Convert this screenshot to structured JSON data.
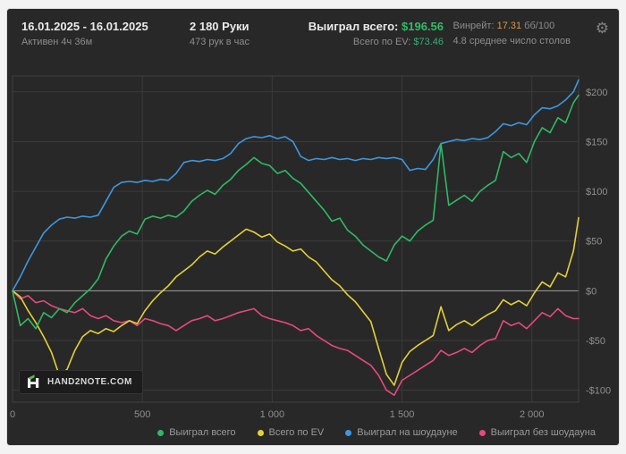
{
  "header": {
    "date_range": "16.01.2025 - 16.01.2025",
    "active_time": "Активен 4ч 36м",
    "hands": "2 180 Руки",
    "hands_per_hour": "473 рук в час",
    "won_label": "Выиграл всего:",
    "won_value": "$196.56",
    "ev_label": "Всего по EV:",
    "ev_value": "$73.46",
    "winrate_label": "Винрейт:",
    "winrate_value": "17.31",
    "winrate_unit": "бб/100",
    "avg_tables": "4.8 среднее число столов",
    "gear_icon": "⚙"
  },
  "colors": {
    "panel_bg": "#282828",
    "won_value": "#2fbd66",
    "ev_value": "#35ae78",
    "winrate_value": "#d89a3f",
    "grid": "#3a3a3a",
    "zero_line": "#9f9f9f",
    "tick_text": "#8f8f8f"
  },
  "logo": {
    "text": "HAND2NOTE.COM"
  },
  "chart_data": {
    "type": "line",
    "title": "",
    "xlabel": "",
    "ylabel": "",
    "grid": true,
    "legend_position": "bottom",
    "xlim": [
      0,
      2180
    ],
    "ylim": [
      -112,
      216
    ],
    "xticks": [
      {
        "v": 0,
        "label": "0"
      },
      {
        "v": 500,
        "label": "500"
      },
      {
        "v": 1000,
        "label": "1 000"
      },
      {
        "v": 1500,
        "label": "1 500"
      },
      {
        "v": 2000,
        "label": "2 000"
      }
    ],
    "yticks": [
      {
        "v": 200,
        "label": "$200"
      },
      {
        "v": 150,
        "label": "$150"
      },
      {
        "v": 100,
        "label": "$100"
      },
      {
        "v": 50,
        "label": "$50"
      },
      {
        "v": 0,
        "label": "$0"
      },
      {
        "v": -50,
        "label": "-$50"
      },
      {
        "v": -100,
        "label": "-$100"
      }
    ],
    "x": [
      0,
      30,
      60,
      90,
      120,
      150,
      180,
      210,
      240,
      270,
      300,
      330,
      360,
      390,
      420,
      450,
      480,
      510,
      540,
      570,
      600,
      630,
      660,
      690,
      720,
      750,
      780,
      810,
      840,
      870,
      900,
      930,
      960,
      990,
      1020,
      1050,
      1080,
      1110,
      1140,
      1170,
      1200,
      1230,
      1260,
      1290,
      1320,
      1350,
      1380,
      1410,
      1440,
      1470,
      1500,
      1530,
      1560,
      1590,
      1620,
      1650,
      1680,
      1710,
      1740,
      1770,
      1800,
      1830,
      1860,
      1890,
      1920,
      1950,
      1980,
      2010,
      2040,
      2070,
      2100,
      2130,
      2160,
      2180
    ],
    "series": [
      {
        "name": "Выиграл всего",
        "color": "#2eba62",
        "values": [
          0,
          -35,
          -28,
          -38,
          -22,
          -27,
          -18,
          -22,
          -12,
          -5,
          2,
          12,
          32,
          45,
          55,
          60,
          57,
          72,
          75,
          73,
          76,
          74,
          80,
          90,
          96,
          101,
          97,
          106,
          112,
          121,
          127,
          134,
          128,
          126,
          118,
          121,
          113,
          108,
          99,
          90,
          81,
          70,
          73,
          61,
          55,
          46,
          40,
          34,
          30,
          46,
          55,
          50,
          60,
          66,
          71,
          148,
          86,
          91,
          96,
          90,
          100,
          106,
          111,
          140,
          134,
          138,
          129,
          150,
          164,
          159,
          174,
          169,
          189,
          196.56
        ]
      },
      {
        "name": "Всего по EV",
        "color": "#e3d135",
        "values": [
          0,
          -6,
          -20,
          -32,
          -46,
          -62,
          -85,
          -79,
          -60,
          -46,
          -40,
          -43,
          -38,
          -41,
          -35,
          -30,
          -33,
          -20,
          -10,
          -2,
          5,
          14,
          20,
          26,
          34,
          40,
          37,
          44,
          50,
          56,
          62,
          59,
          54,
          57,
          49,
          45,
          40,
          42,
          34,
          29,
          20,
          11,
          5,
          -4,
          -11,
          -21,
          -31,
          -58,
          -84,
          -95,
          -72,
          -61,
          -55,
          -50,
          -45,
          -16,
          -40,
          -34,
          -30,
          -35,
          -29,
          -24,
          -20,
          -9,
          -14,
          -10,
          -15,
          -2,
          9,
          4,
          18,
          14,
          40,
          73.46
        ]
      },
      {
        "name": "Выиграл на шоудауне",
        "color": "#3c97e0",
        "values": [
          0,
          14,
          30,
          44,
          58,
          66,
          72,
          74,
          73,
          75,
          74,
          76,
          90,
          104,
          109,
          110,
          109,
          111,
          110,
          112,
          111,
          118,
          129,
          131,
          130,
          132,
          131,
          133,
          138,
          148,
          153,
          155,
          154,
          156,
          153,
          155,
          150,
          135,
          131,
          133,
          132,
          134,
          132,
          133,
          131,
          133,
          132,
          134,
          133,
          134,
          132,
          121,
          123,
          122,
          132,
          148,
          150,
          152,
          151,
          153,
          152,
          154,
          160,
          168,
          166,
          169,
          167,
          177,
          184,
          183,
          186,
          192,
          200,
          212
        ]
      },
      {
        "name": "Выиграл без шоудауна",
        "color": "#e8487c",
        "values": [
          0,
          -8,
          -5,
          -12,
          -10,
          -15,
          -18,
          -20,
          -22,
          -18,
          -25,
          -28,
          -25,
          -30,
          -32,
          -30,
          -35,
          -28,
          -30,
          -33,
          -35,
          -40,
          -35,
          -30,
          -28,
          -25,
          -30,
          -28,
          -25,
          -22,
          -20,
          -18,
          -25,
          -28,
          -30,
          -32,
          -35,
          -40,
          -38,
          -45,
          -50,
          -55,
          -58,
          -60,
          -65,
          -70,
          -75,
          -85,
          -100,
          -105,
          -90,
          -85,
          -80,
          -75,
          -70,
          -60,
          -65,
          -62,
          -58,
          -62,
          -55,
          -50,
          -48,
          -30,
          -35,
          -32,
          -38,
          -30,
          -22,
          -26,
          -18,
          -25,
          -28,
          -27.9
        ]
      }
    ]
  }
}
